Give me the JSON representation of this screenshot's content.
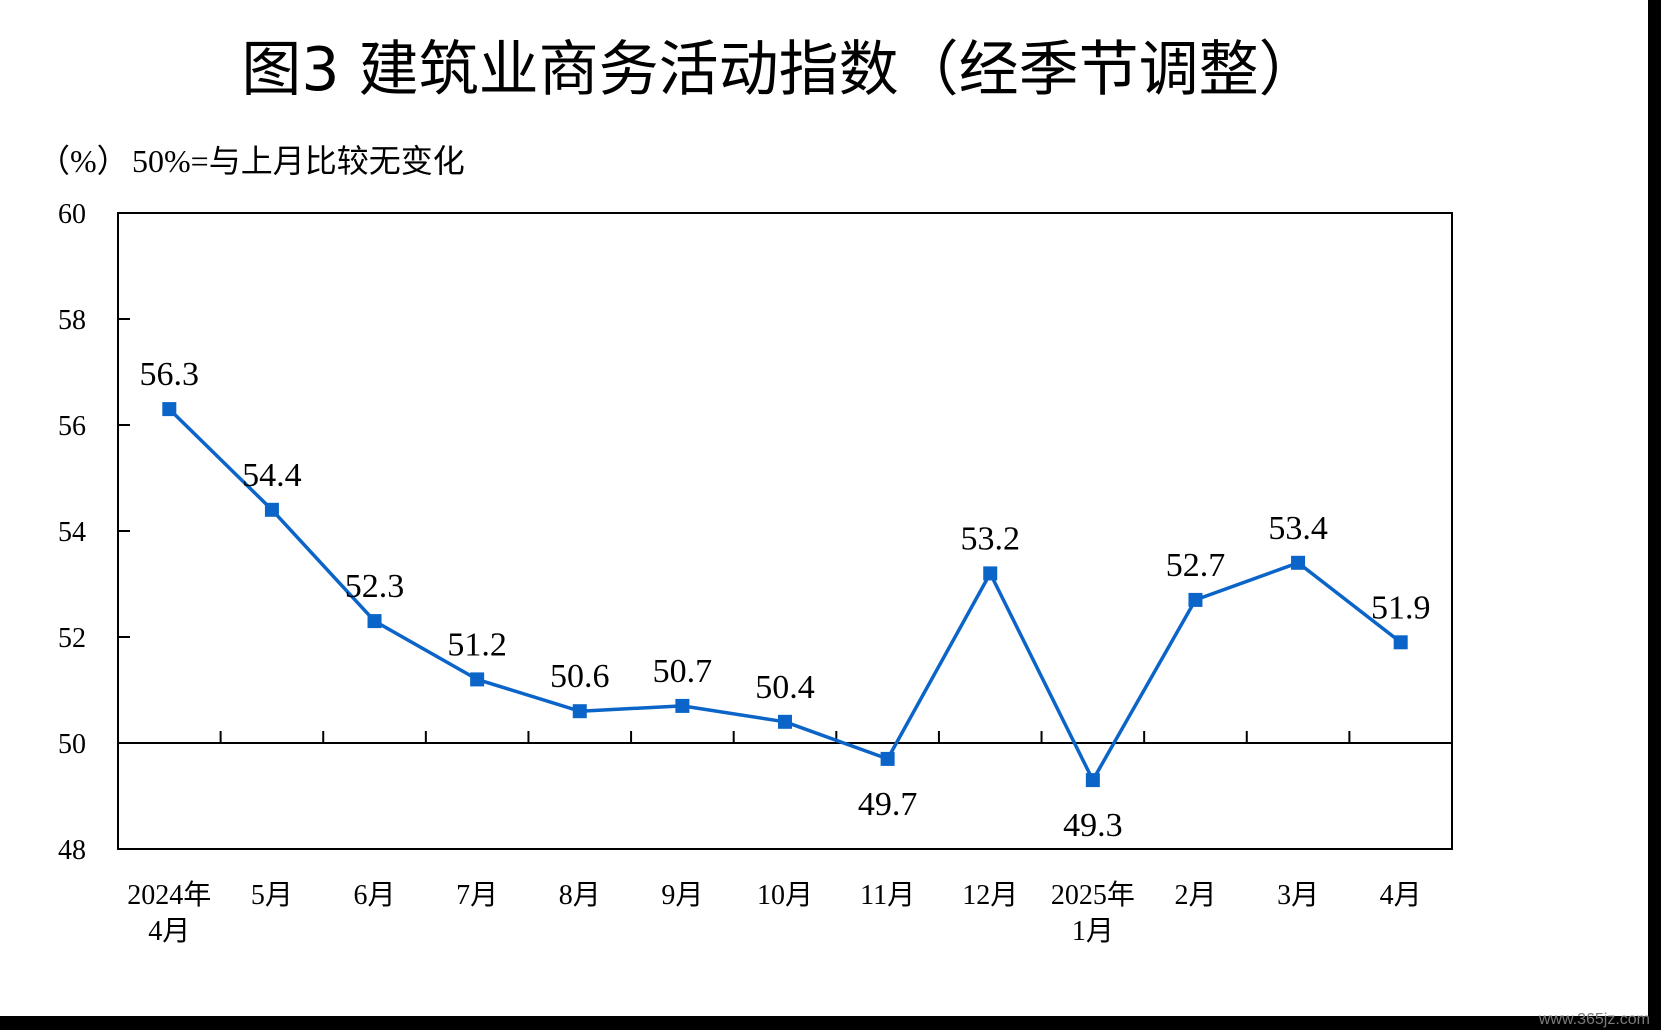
{
  "chart_data": {
    "type": "line",
    "title": "图3  建筑业商务活动指数（经季节调整）",
    "unit_label": "（%）",
    "reference_note": "50%=与上月比较无变化",
    "categories": [
      [
        "2024年",
        "4月"
      ],
      [
        "5月"
      ],
      [
        "6月"
      ],
      [
        "7月"
      ],
      [
        "8月"
      ],
      [
        "9月"
      ],
      [
        "10月"
      ],
      [
        "11月"
      ],
      [
        "12月"
      ],
      [
        "2025年",
        "1月"
      ],
      [
        "2月"
      ],
      [
        "3月"
      ],
      [
        "4月"
      ]
    ],
    "series": [
      {
        "values": [
          56.3,
          54.4,
          52.3,
          51.2,
          50.6,
          50.7,
          50.4,
          49.7,
          53.2,
          49.3,
          52.7,
          53.4,
          51.9
        ]
      }
    ],
    "ylim": [
      48,
      60
    ],
    "yticks": [
      48,
      50,
      52,
      54,
      56,
      58,
      60
    ],
    "reference_line": 50,
    "grid": false,
    "series_color": "#0b64c8",
    "label_positions": [
      "above",
      "above",
      "above",
      "above",
      "above",
      "above",
      "above",
      "below",
      "above",
      "below",
      "above",
      "above",
      "above"
    ]
  },
  "watermark": "www.365jz.com"
}
